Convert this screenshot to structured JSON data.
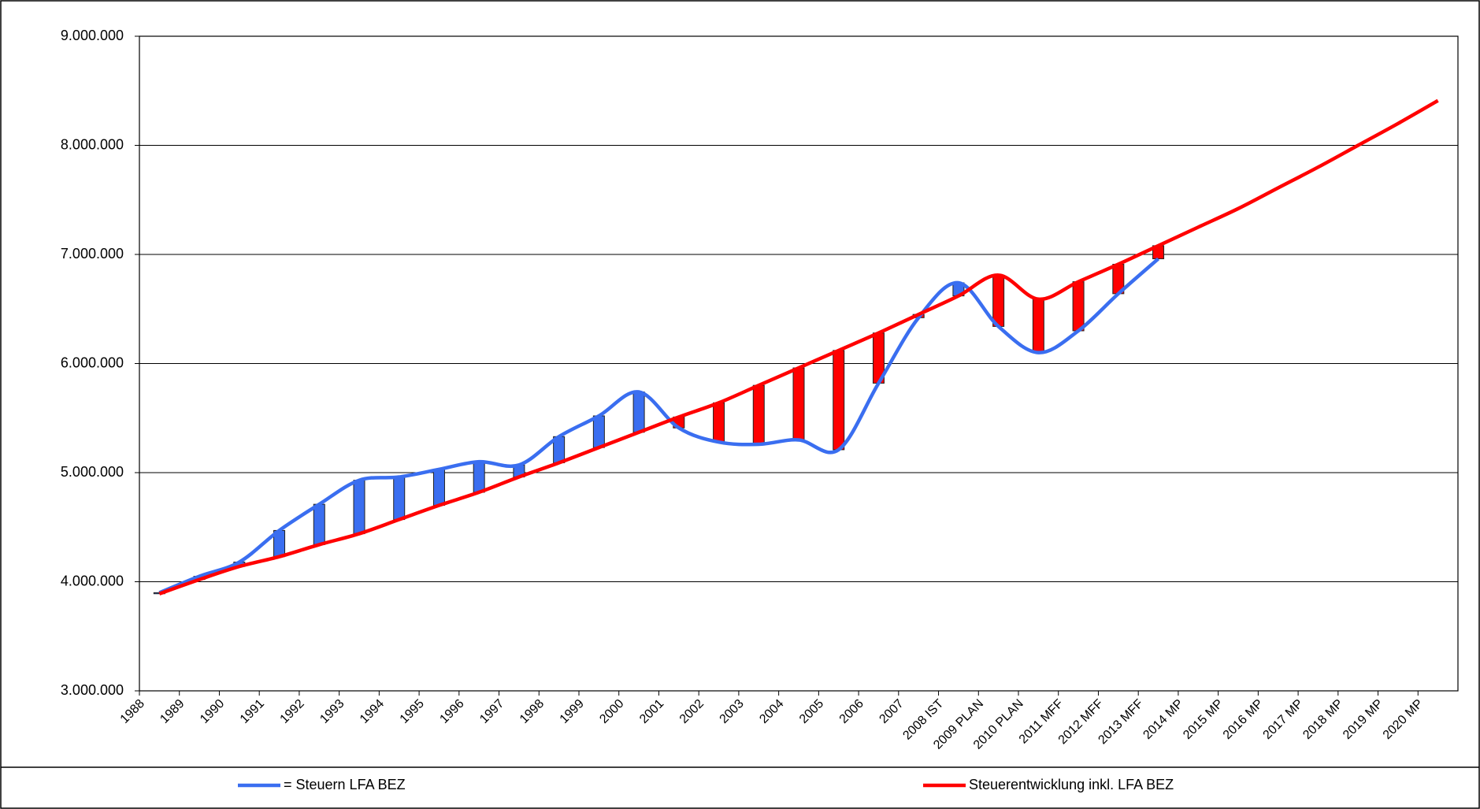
{
  "chart_data": {
    "type": "line",
    "categories": [
      "1988",
      "1989",
      "1990",
      "1991",
      "1992",
      "1993",
      "1994",
      "1995",
      "1996",
      "1997",
      "1998",
      "1999",
      "2000",
      "2001",
      "2002",
      "2003",
      "2004",
      "2005",
      "2006",
      "2007",
      "2008 IST",
      "2009 PLAN",
      "2010 PLAN",
      "2011 MFF",
      "2012 MFF",
      "2013 MFF",
      "2014 MP",
      "2015 MP",
      "2016 MP",
      "2017 MP",
      "2018 MP",
      "2019 MP",
      "2020 MP"
    ],
    "series": [
      {
        "name": "= Steuern LFA BEZ",
        "color": "#3a6ef0",
        "values": [
          3900000,
          4050000,
          4180000,
          4470000,
          4710000,
          4930000,
          4960000,
          5030000,
          5100000,
          5070000,
          5330000,
          5520000,
          5740000,
          5410000,
          5280000,
          5260000,
          5300000,
          5210000,
          5820000,
          6420000,
          6740000,
          6340000,
          6100000,
          6300000,
          6640000,
          6960000,
          null,
          null,
          null,
          null,
          null,
          null,
          null
        ]
      },
      {
        "name": "Steuerentwicklung inkl. LFA BEZ",
        "color": "#ff0000",
        "values": [
          3890000,
          4020000,
          4140000,
          4230000,
          4340000,
          4440000,
          4570000,
          4700000,
          4820000,
          4960000,
          5090000,
          5230000,
          5370000,
          5510000,
          5640000,
          5800000,
          5960000,
          6120000,
          6280000,
          6450000,
          6620000,
          6810000,
          6590000,
          6750000,
          6910000,
          7080000,
          7250000,
          7420000,
          7610000,
          7800000,
          8000000,
          8200000,
          8410000
        ]
      }
    ],
    "ylim": [
      3000000,
      9000000
    ],
    "yticks": [
      {
        "value": 3000000,
        "label": "3.000.000"
      },
      {
        "value": 4000000,
        "label": "4.000.000"
      },
      {
        "value": 5000000,
        "label": "5.000.000"
      },
      {
        "value": 6000000,
        "label": "6.000.000"
      },
      {
        "value": 7000000,
        "label": "7.000.000"
      },
      {
        "value": 8000000,
        "label": "8.000.000"
      },
      {
        "value": 9000000,
        "label": "9.000.000"
      }
    ],
    "grid": true,
    "legend": "bottom"
  }
}
